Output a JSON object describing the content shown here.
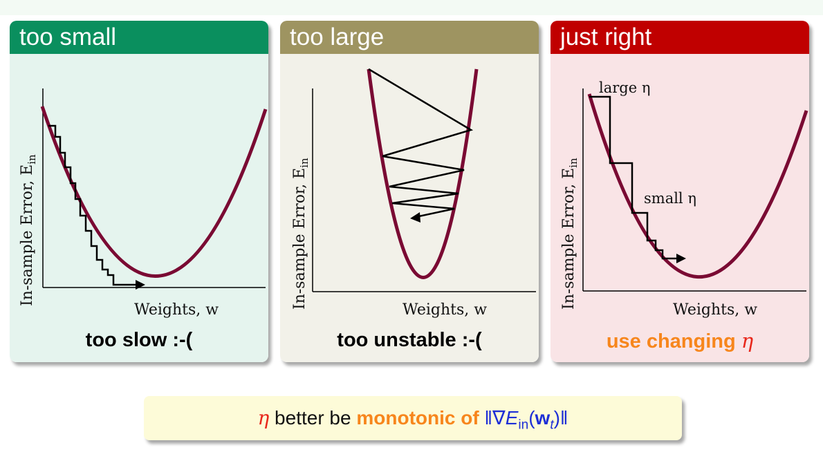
{
  "colors": {
    "small_header": "#0a8f5e",
    "large_header": "#9e9461",
    "right_header": "#c00000",
    "small_body": "#e5f4ee",
    "large_body": "#f2f1e9",
    "right_body": "#f9e4e6",
    "curve": "#7a0a33",
    "eta_red": "#e8271b",
    "orange": "#f7861c",
    "formula_blue": "#1e2fd6"
  },
  "panels": [
    {
      "title": "too small",
      "y_axis_label": "In-sample Error, E",
      "y_axis_sub": "in",
      "x_axis_label": "Weights, w",
      "caption": "too slow :-("
    },
    {
      "title": "too large",
      "y_axis_label": "In-sample Error, E",
      "y_axis_sub": "in",
      "x_axis_label": "Weights, w",
      "caption": "too unstable :-("
    },
    {
      "title": "just right",
      "y_axis_label": "In-sample Error, E",
      "y_axis_sub": "in",
      "x_axis_label": "Weights, w",
      "caption": "use changing",
      "caption_symbol": "η",
      "annotation_large": "large η",
      "annotation_small": "small η"
    }
  ],
  "bottom": {
    "eta": "η",
    "text1": "better be",
    "text2": "monotonic of",
    "formula_open": "‖∇",
    "formula_E": "E",
    "formula_sub": "in",
    "formula_paren_open": "(",
    "formula_w": "w",
    "formula_t": "t",
    "formula_close": ")‖"
  }
}
